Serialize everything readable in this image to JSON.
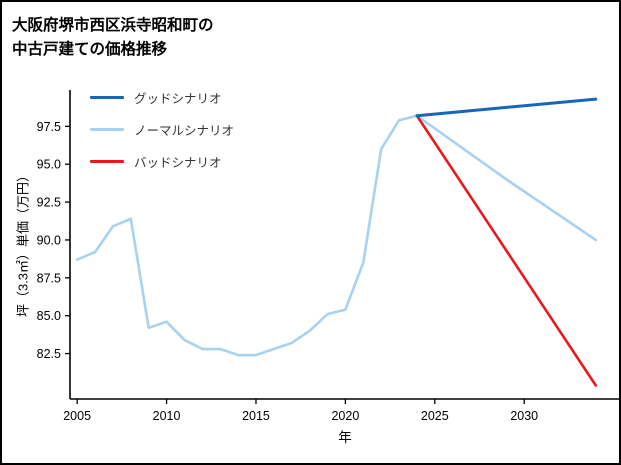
{
  "header": {
    "title_line1": "大阪府堺市西区浜寺昭和町の",
    "title_line2": "中古戸建ての価格推移"
  },
  "chart_data": {
    "type": "line",
    "title": "大阪府堺市西区浜寺昭和町の中古戸建ての価格推移",
    "xlabel": "年",
    "ylabel": "坪（3.3㎡）単価（万円）",
    "xlim": [
      2004.6,
      2035.3
    ],
    "ylim": [
      79.5,
      99.9
    ],
    "xticks": [
      2005,
      2010,
      2015,
      2020,
      2025,
      2030
    ],
    "yticks": [
      82.5,
      85.0,
      87.5,
      90.0,
      92.5,
      95.0,
      97.5
    ],
    "grid": false,
    "legend_position": "upper left",
    "series": [
      {
        "name": "グッドシナリオ",
        "color": "#1667b8",
        "width": 3,
        "x": [
          2024,
          2029,
          2034
        ],
        "y": [
          98.2,
          98.75,
          99.3
        ]
      },
      {
        "name": "ノーマルシナリオ",
        "color": "#a9d1f2",
        "width": 2.6,
        "x": [
          2005,
          2006,
          2007,
          2008,
          2009,
          2010,
          2011,
          2012,
          2013,
          2014,
          2015,
          2016,
          2017,
          2018,
          2019,
          2020,
          2021,
          2022,
          2023,
          2024,
          2029,
          2034
        ],
        "y": [
          88.7,
          89.2,
          90.9,
          91.4,
          84.2,
          84.6,
          83.4,
          82.8,
          82.8,
          82.4,
          82.4,
          82.8,
          83.2,
          84.0,
          85.1,
          85.4,
          88.5,
          96.0,
          97.9,
          98.2,
          94.0,
          90.0
        ]
      },
      {
        "name": "バッドシナリオ",
        "color": "#e8191c",
        "width": 2.6,
        "x": [
          2024,
          2034
        ],
        "y": [
          98.2,
          80.4
        ]
      }
    ]
  }
}
